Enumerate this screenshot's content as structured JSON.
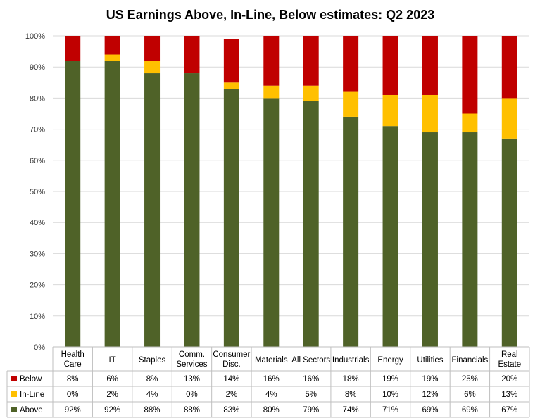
{
  "chart_data": {
    "type": "bar",
    "stacked": true,
    "title": "US Earnings Above, In-Line, Below estimates: Q2 2023",
    "categories": [
      [
        "Health",
        "Care"
      ],
      [
        "IT"
      ],
      [
        "Staples"
      ],
      [
        "Comm.",
        "Services"
      ],
      [
        "Consumer",
        "Disc."
      ],
      [
        "Materials"
      ],
      [
        "All Sectors"
      ],
      [
        "Industrials"
      ],
      [
        "Energy"
      ],
      [
        "Utilities"
      ],
      [
        "Financials"
      ],
      [
        "Real",
        "Estate"
      ]
    ],
    "yticks": [
      "0%",
      "10%",
      "20%",
      "30%",
      "40%",
      "50%",
      "60%",
      "70%",
      "80%",
      "90%",
      "100%"
    ],
    "ylim": [
      0,
      100
    ],
    "legend_placement": "data-table-left",
    "series": [
      {
        "name": "Below",
        "color": "#C00000",
        "values": [
          8,
          6,
          8,
          13,
          14,
          16,
          16,
          18,
          19,
          19,
          25,
          20
        ],
        "labels": [
          "8%",
          "6%",
          "8%",
          "13%",
          "14%",
          "16%",
          "16%",
          "18%",
          "19%",
          "19%",
          "25%",
          "20%"
        ]
      },
      {
        "name": "In-Line",
        "color": "#FFC000",
        "values": [
          0,
          2,
          4,
          0,
          2,
          4,
          5,
          8,
          10,
          12,
          6,
          13
        ],
        "labels": [
          "0%",
          "2%",
          "4%",
          "0%",
          "2%",
          "4%",
          "5%",
          "8%",
          "10%",
          "12%",
          "6%",
          "13%"
        ]
      },
      {
        "name": "Above",
        "color": "#4F6228",
        "values": [
          92,
          92,
          88,
          88,
          83,
          80,
          79,
          74,
          71,
          69,
          69,
          67
        ],
        "labels": [
          "92%",
          "92%",
          "88%",
          "88%",
          "83%",
          "80%",
          "79%",
          "74%",
          "71%",
          "69%",
          "69%",
          "67%"
        ]
      }
    ]
  }
}
